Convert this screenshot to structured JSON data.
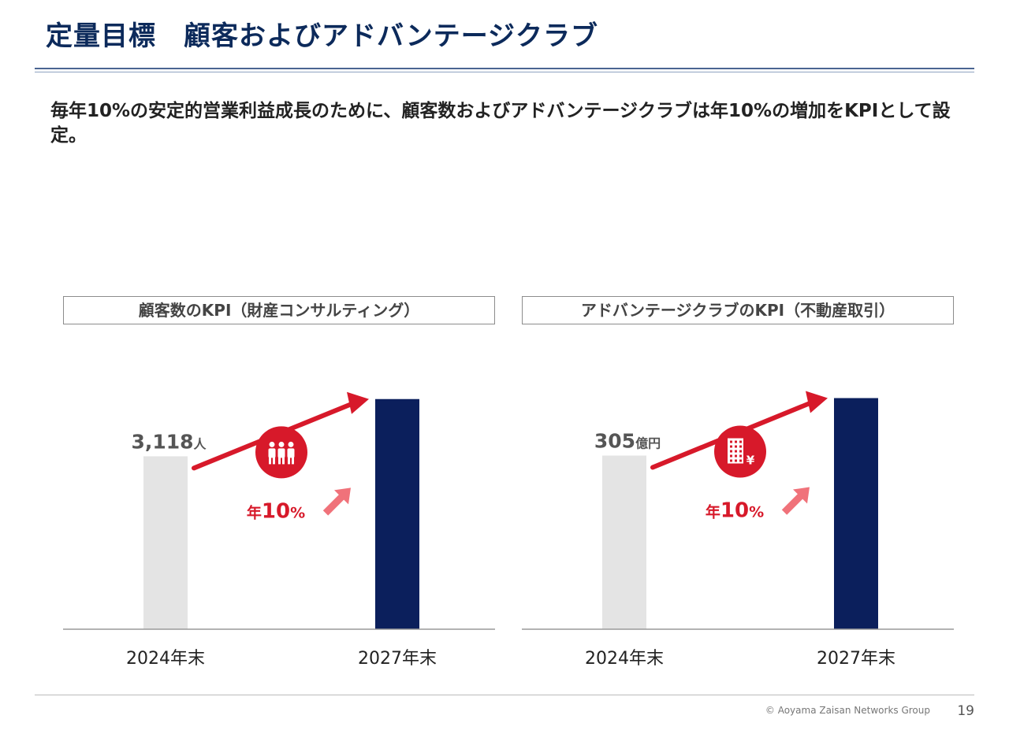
{
  "slide": {
    "title": "定量目標　顧客およびアドバンテージクラブ",
    "lead": "毎年10%の安定的営業利益成長のために、顧客数およびアドバンテージクラブは年10%の増加をKPIとして設定。",
    "copyright": "© Aoyama Zaisan Networks Group",
    "page_number": "19"
  },
  "colors": {
    "title": "#0c2a5b",
    "bar_2024": "#e4e4e4",
    "bar_2027": "#0b1f5c",
    "accent_red": "#d7192a",
    "small_arrow": "#f0727a"
  },
  "chart_data": [
    {
      "type": "bar",
      "title": "顧客数のKPI（財産コンサルティング）",
      "categories": [
        "2024年末",
        "2027年末"
      ],
      "values": [
        3118,
        4150
      ],
      "value_label": {
        "number": "3,118",
        "unit": "人"
      },
      "growth_label": {
        "prefix": "年",
        "number": "10",
        "unit": "%"
      },
      "icon": "people-icon",
      "ylim": [
        0,
        4260
      ],
      "grid": false
    },
    {
      "type": "bar",
      "title": "アドバンテージクラブのKPI（不動産取引）",
      "categories": [
        "2024年末",
        "2027年末"
      ],
      "values": [
        305,
        406
      ],
      "value_label": {
        "number": "305",
        "unit": "億円"
      },
      "growth_label": {
        "prefix": "年",
        "number": "10",
        "unit": "%"
      },
      "icon": "building-yen-icon",
      "ylim": [
        0,
        415
      ],
      "grid": false
    }
  ]
}
